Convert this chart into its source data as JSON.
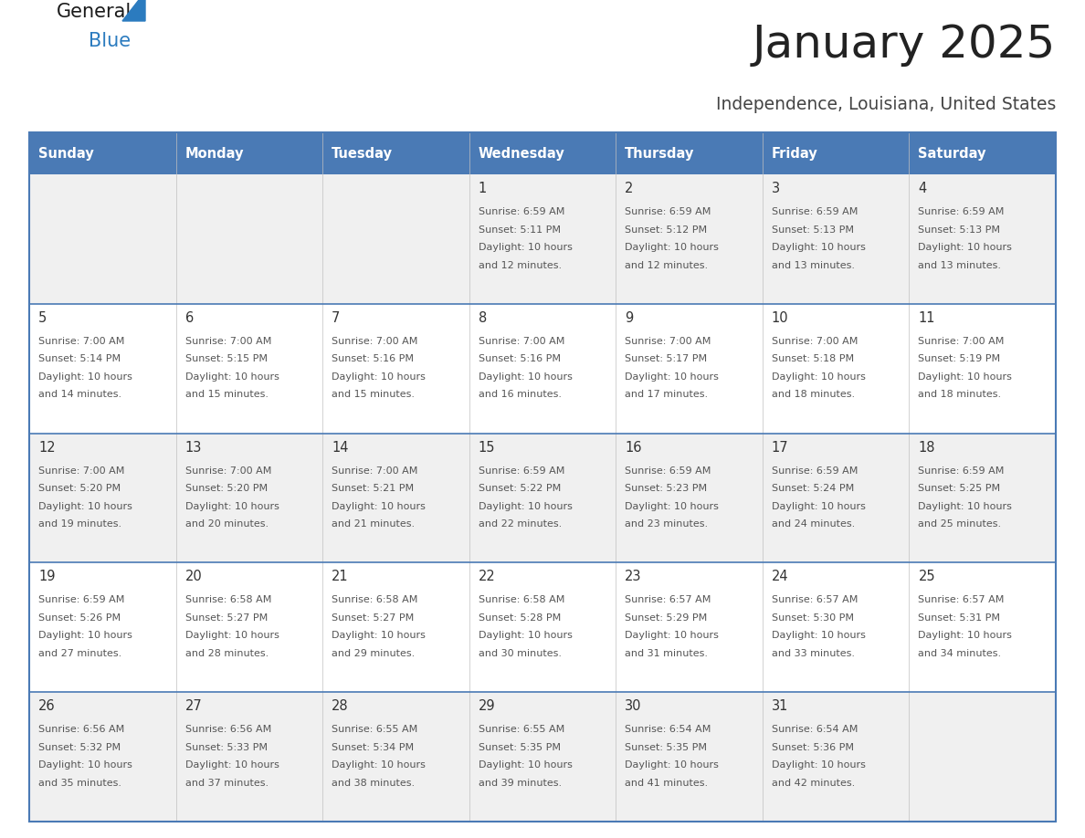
{
  "title": "January 2025",
  "subtitle": "Independence, Louisiana, United States",
  "header_bg": "#4a7ab5",
  "header_text_color": "#ffffff",
  "cell_bg_odd": "#f0f0f0",
  "cell_bg_even": "#ffffff",
  "day_names": [
    "Sunday",
    "Monday",
    "Tuesday",
    "Wednesday",
    "Thursday",
    "Friday",
    "Saturday"
  ],
  "title_color": "#222222",
  "subtitle_color": "#444444",
  "day_number_color": "#333333",
  "cell_text_color": "#555555",
  "border_color": "#4a7ab5",
  "row_divider_color": "#4a7ab5",
  "logo_general_color": "#1a1a1a",
  "logo_blue_color": "#2b7bbf",
  "weeks": [
    [
      {
        "day": null,
        "sunrise": null,
        "sunset": null,
        "daylight": null
      },
      {
        "day": null,
        "sunrise": null,
        "sunset": null,
        "daylight": null
      },
      {
        "day": null,
        "sunrise": null,
        "sunset": null,
        "daylight": null
      },
      {
        "day": 1,
        "sunrise": "6:59 AM",
        "sunset": "5:11 PM",
        "daylight": "10 hours and 12 minutes."
      },
      {
        "day": 2,
        "sunrise": "6:59 AM",
        "sunset": "5:12 PM",
        "daylight": "10 hours and 12 minutes."
      },
      {
        "day": 3,
        "sunrise": "6:59 AM",
        "sunset": "5:13 PM",
        "daylight": "10 hours and 13 minutes."
      },
      {
        "day": 4,
        "sunrise": "6:59 AM",
        "sunset": "5:13 PM",
        "daylight": "10 hours and 13 minutes."
      }
    ],
    [
      {
        "day": 5,
        "sunrise": "7:00 AM",
        "sunset": "5:14 PM",
        "daylight": "10 hours and 14 minutes."
      },
      {
        "day": 6,
        "sunrise": "7:00 AM",
        "sunset": "5:15 PM",
        "daylight": "10 hours and 15 minutes."
      },
      {
        "day": 7,
        "sunrise": "7:00 AM",
        "sunset": "5:16 PM",
        "daylight": "10 hours and 15 minutes."
      },
      {
        "day": 8,
        "sunrise": "7:00 AM",
        "sunset": "5:16 PM",
        "daylight": "10 hours and 16 minutes."
      },
      {
        "day": 9,
        "sunrise": "7:00 AM",
        "sunset": "5:17 PM",
        "daylight": "10 hours and 17 minutes."
      },
      {
        "day": 10,
        "sunrise": "7:00 AM",
        "sunset": "5:18 PM",
        "daylight": "10 hours and 18 minutes."
      },
      {
        "day": 11,
        "sunrise": "7:00 AM",
        "sunset": "5:19 PM",
        "daylight": "10 hours and 18 minutes."
      }
    ],
    [
      {
        "day": 12,
        "sunrise": "7:00 AM",
        "sunset": "5:20 PM",
        "daylight": "10 hours and 19 minutes."
      },
      {
        "day": 13,
        "sunrise": "7:00 AM",
        "sunset": "5:20 PM",
        "daylight": "10 hours and 20 minutes."
      },
      {
        "day": 14,
        "sunrise": "7:00 AM",
        "sunset": "5:21 PM",
        "daylight": "10 hours and 21 minutes."
      },
      {
        "day": 15,
        "sunrise": "6:59 AM",
        "sunset": "5:22 PM",
        "daylight": "10 hours and 22 minutes."
      },
      {
        "day": 16,
        "sunrise": "6:59 AM",
        "sunset": "5:23 PM",
        "daylight": "10 hours and 23 minutes."
      },
      {
        "day": 17,
        "sunrise": "6:59 AM",
        "sunset": "5:24 PM",
        "daylight": "10 hours and 24 minutes."
      },
      {
        "day": 18,
        "sunrise": "6:59 AM",
        "sunset": "5:25 PM",
        "daylight": "10 hours and 25 minutes."
      }
    ],
    [
      {
        "day": 19,
        "sunrise": "6:59 AM",
        "sunset": "5:26 PM",
        "daylight": "10 hours and 27 minutes."
      },
      {
        "day": 20,
        "sunrise": "6:58 AM",
        "sunset": "5:27 PM",
        "daylight": "10 hours and 28 minutes."
      },
      {
        "day": 21,
        "sunrise": "6:58 AM",
        "sunset": "5:27 PM",
        "daylight": "10 hours and 29 minutes."
      },
      {
        "day": 22,
        "sunrise": "6:58 AM",
        "sunset": "5:28 PM",
        "daylight": "10 hours and 30 minutes."
      },
      {
        "day": 23,
        "sunrise": "6:57 AM",
        "sunset": "5:29 PM",
        "daylight": "10 hours and 31 minutes."
      },
      {
        "day": 24,
        "sunrise": "6:57 AM",
        "sunset": "5:30 PM",
        "daylight": "10 hours and 33 minutes."
      },
      {
        "day": 25,
        "sunrise": "6:57 AM",
        "sunset": "5:31 PM",
        "daylight": "10 hours and 34 minutes."
      }
    ],
    [
      {
        "day": 26,
        "sunrise": "6:56 AM",
        "sunset": "5:32 PM",
        "daylight": "10 hours and 35 minutes."
      },
      {
        "day": 27,
        "sunrise": "6:56 AM",
        "sunset": "5:33 PM",
        "daylight": "10 hours and 37 minutes."
      },
      {
        "day": 28,
        "sunrise": "6:55 AM",
        "sunset": "5:34 PM",
        "daylight": "10 hours and 38 minutes."
      },
      {
        "day": 29,
        "sunrise": "6:55 AM",
        "sunset": "5:35 PM",
        "daylight": "10 hours and 39 minutes."
      },
      {
        "day": 30,
        "sunrise": "6:54 AM",
        "sunset": "5:35 PM",
        "daylight": "10 hours and 41 minutes."
      },
      {
        "day": 31,
        "sunrise": "6:54 AM",
        "sunset": "5:36 PM",
        "daylight": "10 hours and 42 minutes."
      },
      {
        "day": null,
        "sunrise": null,
        "sunset": null,
        "daylight": null
      }
    ]
  ],
  "figsize": [
    11.88,
    9.18
  ],
  "dpi": 100
}
